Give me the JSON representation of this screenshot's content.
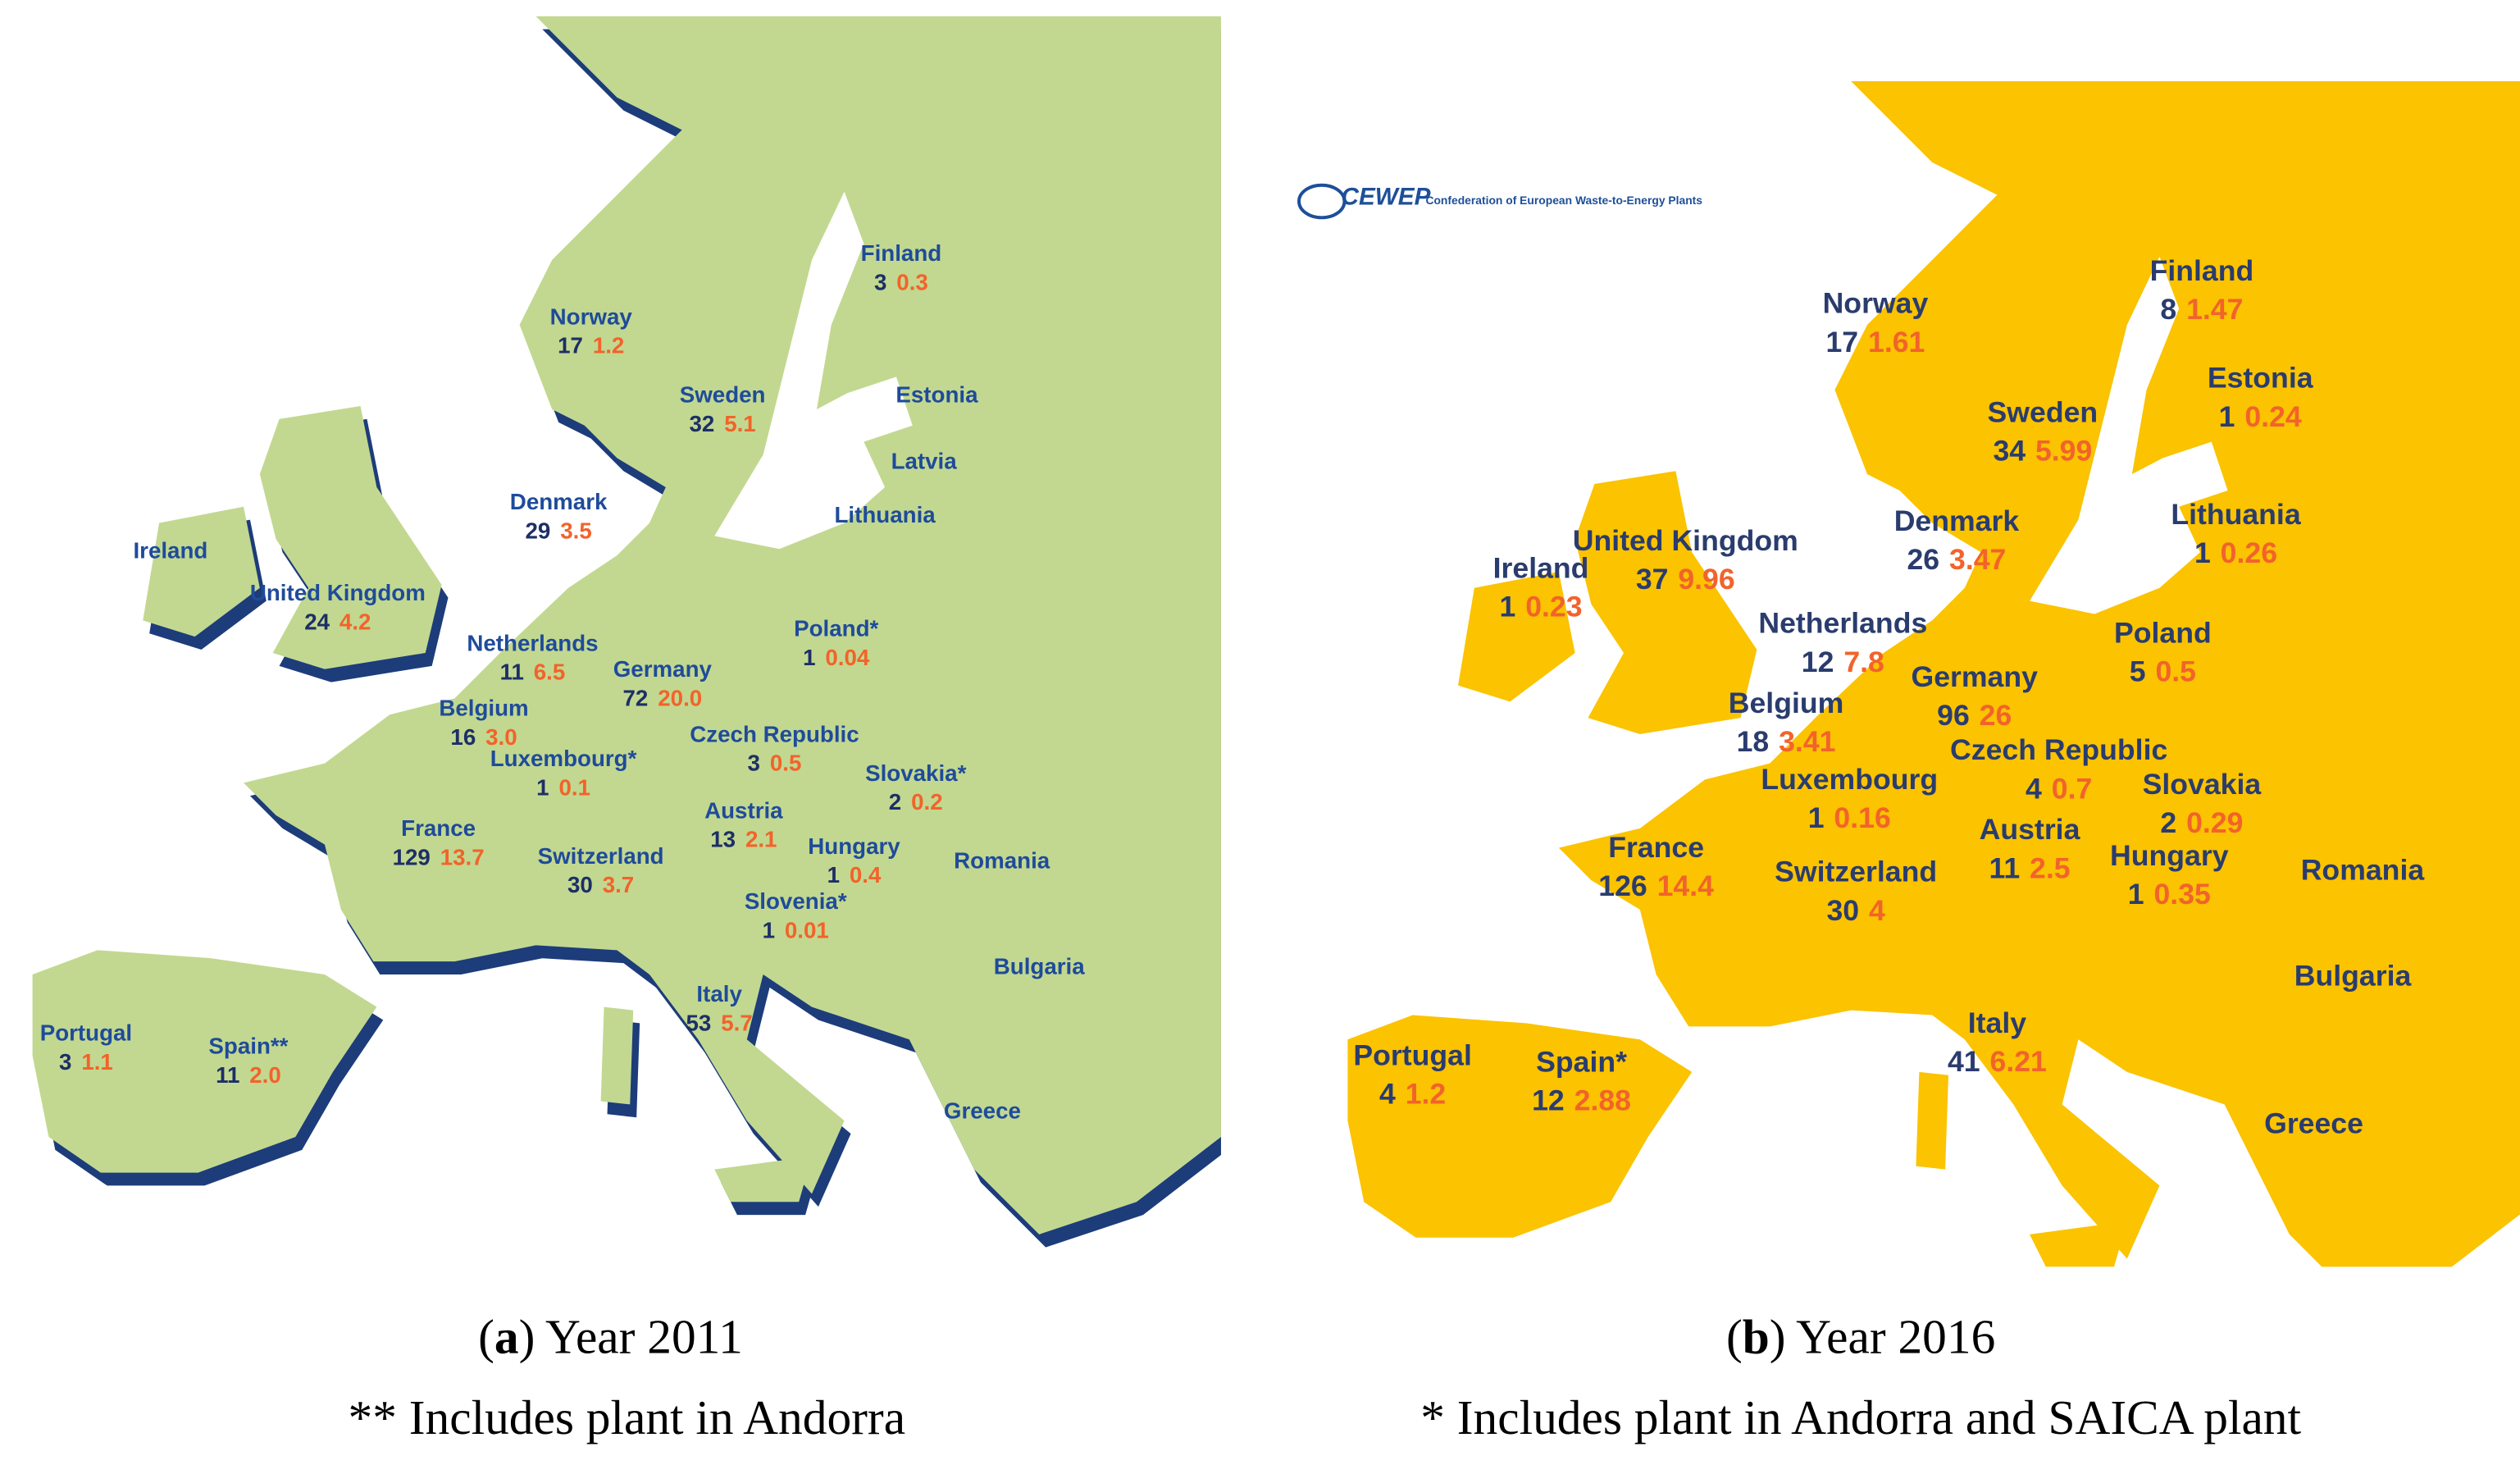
{
  "maps": [
    {
      "countries": [
        {
          "name": "Finland",
          "plants": 3,
          "capacity": 0.3
        },
        {
          "name": "Norway",
          "plants": 17,
          "capacity": 1.2
        },
        {
          "name": "Sweden",
          "plants": 32,
          "capacity": 5.1
        },
        {
          "name": "Estonia"
        },
        {
          "name": "Latvia"
        },
        {
          "name": "Lithuania"
        },
        {
          "name": "Denmark",
          "plants": 29,
          "capacity": 3.5
        },
        {
          "name": "Ireland"
        },
        {
          "name": "United Kingdom",
          "plants": 24,
          "capacity": 4.2
        },
        {
          "name": "Netherlands",
          "plants": 11,
          "capacity": 6.5
        },
        {
          "name": "Germany",
          "plants": 72,
          "capacity": {
            "value": 20,
            "label": "20.0"
          }
        },
        {
          "name": "Poland*",
          "plants": 1,
          "capacity": 0.04
        },
        {
          "name": "Belgium",
          "plants": 16,
          "capacity": {
            "value": 3,
            "label": "3.0"
          }
        },
        {
          "name": "Luxembourg*",
          "plants": 1,
          "capacity": 0.1
        },
        {
          "name": "Czech Republic",
          "plants": 3,
          "capacity": 0.5
        },
        {
          "name": "Slovakia*",
          "plants": 2,
          "capacity": 0.2
        },
        {
          "name": "France",
          "plants": 129,
          "capacity": 13.7
        },
        {
          "name": "Austria",
          "plants": 13,
          "capacity": 2.1
        },
        {
          "name": "Switzerland",
          "plants": 30,
          "capacity": 3.7
        },
        {
          "name": "Hungary",
          "plants": 1,
          "capacity": 0.4
        },
        {
          "name": "Romania"
        },
        {
          "name": "Slovenia*",
          "plants": 1,
          "capacity": 0.01
        },
        {
          "name": "Bulgaria"
        },
        {
          "name": "Italy",
          "plants": 53,
          "capacity": 5.7
        },
        {
          "name": "Greece"
        },
        {
          "name": "Portugal",
          "plants": 3,
          "capacity": 1.1
        },
        {
          "name": "Spain**",
          "plants": 11,
          "capacity": {
            "value": 2,
            "label": "2.0"
          }
        }
      ],
      "caption": {
        "open": "(",
        "letter": "a",
        "rest": ") Year 2011",
        "note": "** Includes plant in Andorra"
      }
    },
    {
      "countries": [
        {
          "name": "Finland",
          "plants": 8,
          "capacity": 1.47
        },
        {
          "name": "Norway",
          "plants": 17,
          "capacity": 1.61
        },
        {
          "name": "Estonia",
          "plants": 1,
          "capacity": 0.24
        },
        {
          "name": "Sweden",
          "plants": 34,
          "capacity": 5.99
        },
        {
          "name": "Lithuania",
          "plants": 1,
          "capacity": 0.26
        },
        {
          "name": "United Kingdom",
          "plants": 37,
          "capacity": 9.96
        },
        {
          "name": "Denmark",
          "plants": 26,
          "capacity": 3.47
        },
        {
          "name": "Ireland",
          "plants": 1,
          "capacity": 0.23
        },
        {
          "name": "Netherlands",
          "plants": 12,
          "capacity": 7.8
        },
        {
          "name": "Poland",
          "plants": 5,
          "capacity": 0.5
        },
        {
          "name": "Germany",
          "plants": 96,
          "capacity": 26
        },
        {
          "name": "Belgium",
          "plants": 18,
          "capacity": 3.41
        },
        {
          "name": "Czech Republic",
          "plants": 4,
          "capacity": 0.7
        },
        {
          "name": "Luxembourg",
          "plants": 1,
          "capacity": 0.16
        },
        {
          "name": "Slovakia",
          "plants": 2,
          "capacity": 0.29
        },
        {
          "name": "France",
          "plants": 126,
          "capacity": 14.4
        },
        {
          "name": "Austria",
          "plants": 11,
          "capacity": 2.5
        },
        {
          "name": "Hungary",
          "plants": 1,
          "capacity": 0.35
        },
        {
          "name": "Romania"
        },
        {
          "name": "Switzerland",
          "plants": 30,
          "capacity": 4
        },
        {
          "name": "Bulgaria"
        },
        {
          "name": "Italy",
          "plants": 41,
          "capacity": 6.21
        },
        {
          "name": "Portugal",
          "plants": 4,
          "capacity": 1.2
        },
        {
          "name": "Spain*",
          "plants": 12,
          "capacity": 2.88
        },
        {
          "name": "Greece"
        }
      ],
      "logo": {
        "acronym": "CEWEP",
        "full": "Confederation of European Waste-to-Energy Plants"
      },
      "caption": {
        "open": "(",
        "letter": "b",
        "rest": ") Year 2016",
        "note": "* Includes plant in Andorra and SAICA plant"
      }
    }
  ]
}
